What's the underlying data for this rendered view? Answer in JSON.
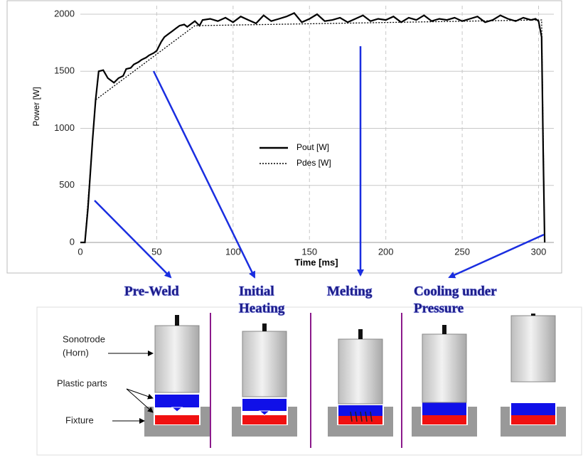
{
  "chart_data": {
    "type": "line",
    "xlabel": "Time [ms]",
    "ylabel": "Power [W]",
    "xlim": [
      0,
      310
    ],
    "xticks": [
      0,
      50,
      100,
      150,
      200,
      250,
      300
    ],
    "ylim": [
      0,
      2075
    ],
    "yticks": [
      0,
      500,
      1000,
      1500,
      2000
    ],
    "grid": true,
    "legend": "center",
    "series": [
      {
        "name": "Pout [W]",
        "color": "#000000",
        "style": "solid",
        "x": [
          0,
          3,
          5,
          8,
          10,
          12,
          15,
          18,
          20,
          22,
          25,
          28,
          30,
          33,
          35,
          38,
          40,
          43,
          45,
          48,
          50,
          53,
          55,
          58,
          60,
          63,
          65,
          68,
          70,
          73,
          75,
          78,
          80,
          85,
          90,
          95,
          100,
          105,
          110,
          115,
          120,
          125,
          130,
          135,
          140,
          145,
          150,
          155,
          160,
          165,
          170,
          175,
          180,
          185,
          190,
          195,
          200,
          205,
          210,
          215,
          220,
          225,
          230,
          235,
          240,
          245,
          250,
          255,
          260,
          265,
          270,
          275,
          280,
          285,
          290,
          295,
          298,
          300,
          302,
          303,
          304
        ],
        "values": [
          0,
          0,
          300,
          900,
          1250,
          1500,
          1510,
          1440,
          1420,
          1400,
          1440,
          1460,
          1520,
          1530,
          1560,
          1580,
          1600,
          1620,
          1640,
          1660,
          1680,
          1760,
          1800,
          1830,
          1850,
          1880,
          1900,
          1910,
          1890,
          1920,
          1940,
          1900,
          1950,
          1960,
          1940,
          1970,
          1930,
          1980,
          1950,
          1920,
          1990,
          1940,
          1960,
          1980,
          2010,
          1930,
          1960,
          2000,
          1940,
          1950,
          1970,
          1930,
          1960,
          1990,
          1940,
          1960,
          1950,
          1980,
          1930,
          1970,
          1950,
          1990,
          1940,
          1960,
          1950,
          1970,
          1940,
          1960,
          1980,
          1930,
          1950,
          1990,
          1960,
          1940,
          1970,
          1950,
          1960,
          1940,
          1800,
          800,
          0
        ]
      },
      {
        "name": "Pdes [W]",
        "color": "#000000",
        "style": "dotted",
        "x": [
          0,
          3,
          10,
          75,
          300,
          302,
          304
        ],
        "values": [
          0,
          0,
          1250,
          1900,
          1950,
          1950,
          0
        ]
      }
    ]
  },
  "stages": [
    [
      "Pre-Weld"
    ],
    [
      "Initial",
      "Heating"
    ],
    [
      "Melting"
    ],
    [
      "Cooling under",
      "Pressure"
    ]
  ],
  "part_labels": {
    "sonotrode": [
      "Sonotrode",
      "(Horn)"
    ],
    "plastic": "Plastic parts",
    "fixture": "Fixture"
  }
}
